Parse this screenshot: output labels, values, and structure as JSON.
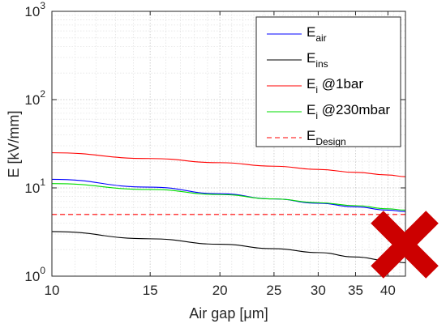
{
  "chart_data": {
    "type": "line",
    "xlabel": "Air gap [μm]",
    "ylabel": "E [kV/mm]",
    "x_scale": "log",
    "y_scale": "log",
    "xlim": [
      10,
      43
    ],
    "ylim": [
      1,
      1000
    ],
    "x_ticks": [
      10,
      15,
      20,
      25,
      30,
      35,
      40
    ],
    "y_ticks": [
      {
        "value": 1,
        "base": "10",
        "exp": "0"
      },
      {
        "value": 10,
        "base": "10",
        "exp": "1"
      },
      {
        "value": 100,
        "base": "10",
        "exp": "2"
      },
      {
        "value": 1000,
        "base": "10",
        "exp": "3"
      }
    ],
    "grid": true,
    "minor_grid": true,
    "legend_position": "top-right",
    "x": [
      10,
      15,
      20,
      25,
      30,
      35,
      40,
      43
    ],
    "series": [
      {
        "name": "E",
        "subscript": "air",
        "color": "#0000ff",
        "dashed": false,
        "values": [
          12.5,
          10.2,
          8.6,
          7.5,
          6.7,
          6.1,
          5.6,
          5.4
        ]
      },
      {
        "name": "E",
        "subscript": "ins",
        "color": "#000000",
        "dashed": false,
        "values": [
          3.2,
          2.65,
          2.3,
          2.05,
          1.85,
          1.65,
          1.5,
          1.42
        ]
      },
      {
        "name": "E",
        "subscript": "i",
        "suffix": " @1bar",
        "color": "#ff0000",
        "dashed": false,
        "values": [
          25,
          21.5,
          19.3,
          17.6,
          16.2,
          15.0,
          14.0,
          13.4
        ]
      },
      {
        "name": "E",
        "subscript": "i",
        "suffix": " @230mbar",
        "color": "#00dd00",
        "dashed": false,
        "values": [
          11.2,
          9.6,
          8.4,
          7.5,
          6.8,
          6.3,
          5.8,
          5.6
        ]
      },
      {
        "name": "E",
        "subscript": "Design",
        "color": "#ff0000",
        "dashed": true,
        "values": [
          5.0,
          5.0,
          5.0,
          5.0,
          5.0,
          5.0,
          5.0,
          5.0
        ]
      }
    ],
    "overlay": {
      "symbol": "cross",
      "color": "#cc0000"
    }
  }
}
